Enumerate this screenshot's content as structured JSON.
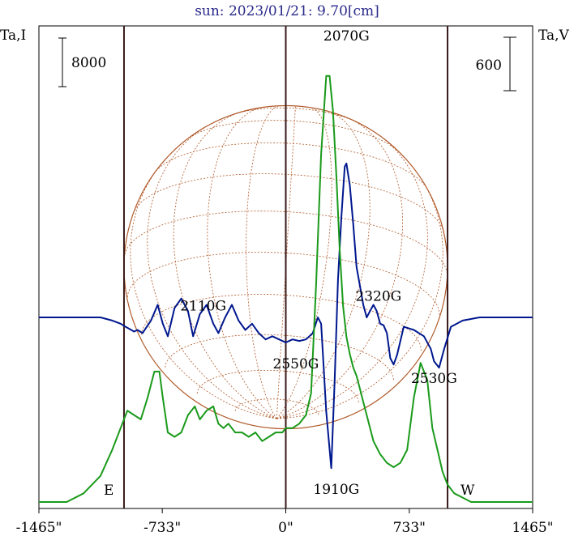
{
  "chart_data": {
    "type": "line",
    "title": "sun: 2023/01/21: 9.70[cm]",
    "left_axis_label": "Ta,I",
    "right_axis_label": "Ta,V",
    "left_scale_bar": "8000",
    "right_scale_bar": "600",
    "x_tick_labels": [
      "-1465\"",
      "-733\"",
      "0\"",
      "733\"",
      "1465\""
    ],
    "x_ticks": [
      -1465,
      -733,
      0,
      733,
      1465
    ],
    "x_range": [
      -1465,
      1465
    ],
    "disk_edges": [
      -960,
      960
    ],
    "limb_labels": {
      "east": "E",
      "west": "W"
    },
    "annotations": [
      {
        "text": "2070G",
        "x": 360,
        "y": 0.97
      },
      {
        "text": "2320G",
        "x": 550,
        "y": 0.43
      },
      {
        "text": "2110G",
        "x": -490,
        "y": 0.41
      },
      {
        "text": "2550G",
        "x": 60,
        "y": 0.29
      },
      {
        "text": "2530G",
        "x": 880,
        "y": 0.26
      },
      {
        "text": "1910G",
        "x": 300,
        "y": 0.03
      }
    ],
    "series": [
      {
        "color": "#00178e",
        "y_rel": "V",
        "x": [
          -1465,
          -1100,
          -1030,
          -980,
          -950,
          -900,
          -880,
          -850,
          -800,
          -760,
          -730,
          -700,
          -660,
          -620,
          -580,
          -550,
          -510,
          -470,
          -430,
          -400,
          -360,
          -320,
          -280,
          -240,
          -200,
          -160,
          -120,
          -80,
          -40,
          0,
          40,
          80,
          120,
          160,
          190,
          210,
          240,
          270,
          290,
          310,
          330,
          350,
          360,
          380,
          400,
          420,
          440,
          460,
          480,
          500,
          520,
          540,
          560,
          580,
          600,
          620,
          640,
          660,
          700,
          760,
          820,
          860,
          880,
          910,
          940,
          980,
          1050,
          1150,
          1300,
          1465
        ],
        "values": [
          0.5,
          0.5,
          0.49,
          0.48,
          0.47,
          0.455,
          0.46,
          0.45,
          0.49,
          0.54,
          0.48,
          0.44,
          0.53,
          0.56,
          0.52,
          0.44,
          0.51,
          0.54,
          0.48,
          0.45,
          0.5,
          0.54,
          0.49,
          0.46,
          0.48,
          0.45,
          0.43,
          0.44,
          0.43,
          0.42,
          0.43,
          0.425,
          0.43,
          0.45,
          0.5,
          0.48,
          0.2,
          0.02,
          0.3,
          0.62,
          0.82,
          0.98,
          0.99,
          0.92,
          0.8,
          0.66,
          0.6,
          0.54,
          0.5,
          0.52,
          0.54,
          0.52,
          0.48,
          0.475,
          0.45,
          0.37,
          0.35,
          0.38,
          0.47,
          0.46,
          0.44,
          0.4,
          0.36,
          0.34,
          0.4,
          0.47,
          0.49,
          0.5,
          0.5,
          0.5
        ]
      },
      {
        "color": "#1a9a1a",
        "y_rel": "I",
        "x": [
          -1465,
          -1300,
          -1200,
          -1100,
          -1030,
          -980,
          -940,
          -900,
          -860,
          -820,
          -780,
          -750,
          -730,
          -700,
          -660,
          -620,
          -580,
          -540,
          -510,
          -470,
          -430,
          -400,
          -370,
          -340,
          -300,
          -260,
          -220,
          -180,
          -140,
          -100,
          -60,
          -20,
          0,
          40,
          80,
          120,
          150,
          180,
          210,
          240,
          260,
          280,
          300,
          320,
          340,
          360,
          380,
          400,
          420,
          440,
          460,
          480,
          520,
          560,
          600,
          640,
          680,
          720,
          760,
          800,
          840,
          870,
          900,
          930,
          960,
          1000,
          1050,
          1100,
          1150,
          1250,
          1350,
          1465
        ],
        "values": [
          0.0,
          0.0,
          0.02,
          0.06,
          0.12,
          0.17,
          0.21,
          0.2,
          0.19,
          0.24,
          0.3,
          0.3,
          0.24,
          0.16,
          0.15,
          0.16,
          0.2,
          0.22,
          0.19,
          0.21,
          0.22,
          0.18,
          0.17,
          0.18,
          0.16,
          0.16,
          0.15,
          0.16,
          0.14,
          0.15,
          0.16,
          0.16,
          0.17,
          0.17,
          0.18,
          0.2,
          0.25,
          0.5,
          0.8,
          0.98,
          0.98,
          0.9,
          0.75,
          0.58,
          0.45,
          0.38,
          0.34,
          0.31,
          0.29,
          0.26,
          0.23,
          0.2,
          0.14,
          0.11,
          0.09,
          0.08,
          0.09,
          0.12,
          0.24,
          0.32,
          0.28,
          0.17,
          0.12,
          0.07,
          0.04,
          0.02,
          0.01,
          0.0,
          0.0,
          0.0,
          0.0,
          0.0
        ]
      }
    ],
    "grid": false
  }
}
